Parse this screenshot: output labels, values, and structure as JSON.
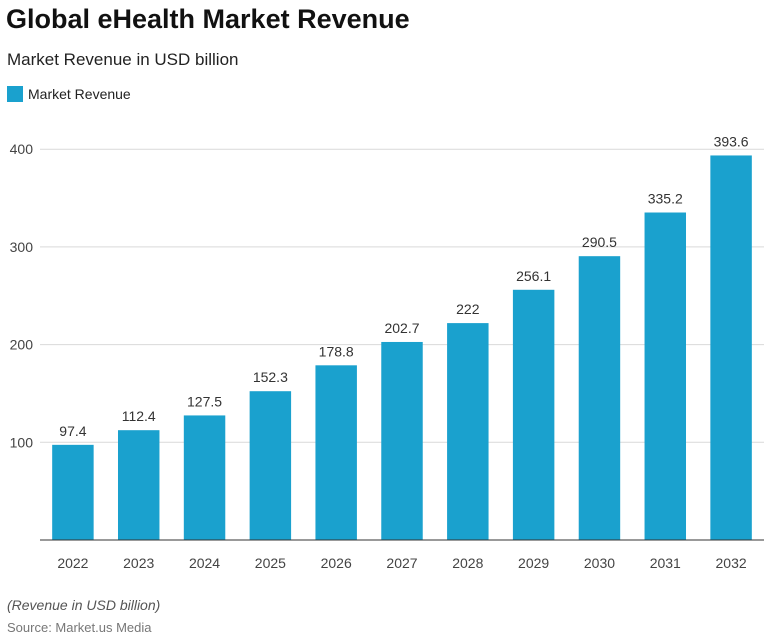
{
  "chart_data": {
    "type": "bar",
    "title": "Global eHealth Market Revenue",
    "subtitle": "Market Revenue in USD billion",
    "categories": [
      "2022",
      "2023",
      "2024",
      "2025",
      "2026",
      "2027",
      "2028",
      "2029",
      "2030",
      "2031",
      "2032"
    ],
    "series": [
      {
        "name": "Market Revenue",
        "color": "#1aa1ce",
        "values": [
          97.4,
          112.4,
          127.5,
          152.3,
          178.8,
          202.7,
          222,
          256.1,
          290.5,
          335.2,
          393.6
        ]
      }
    ],
    "data_labels": [
      "97.4",
      "112.4",
      "127.5",
      "152.3",
      "178.8",
      "202.7",
      "222",
      "256.1",
      "290.5",
      "335.2",
      "393.6"
    ],
    "yticks": [
      100,
      200,
      300,
      400
    ],
    "ylim": [
      0,
      410
    ],
    "grid": true,
    "legend_position": "top-left"
  },
  "footnote": "(Revenue in USD billion)",
  "source": "Source: Market.us Media"
}
